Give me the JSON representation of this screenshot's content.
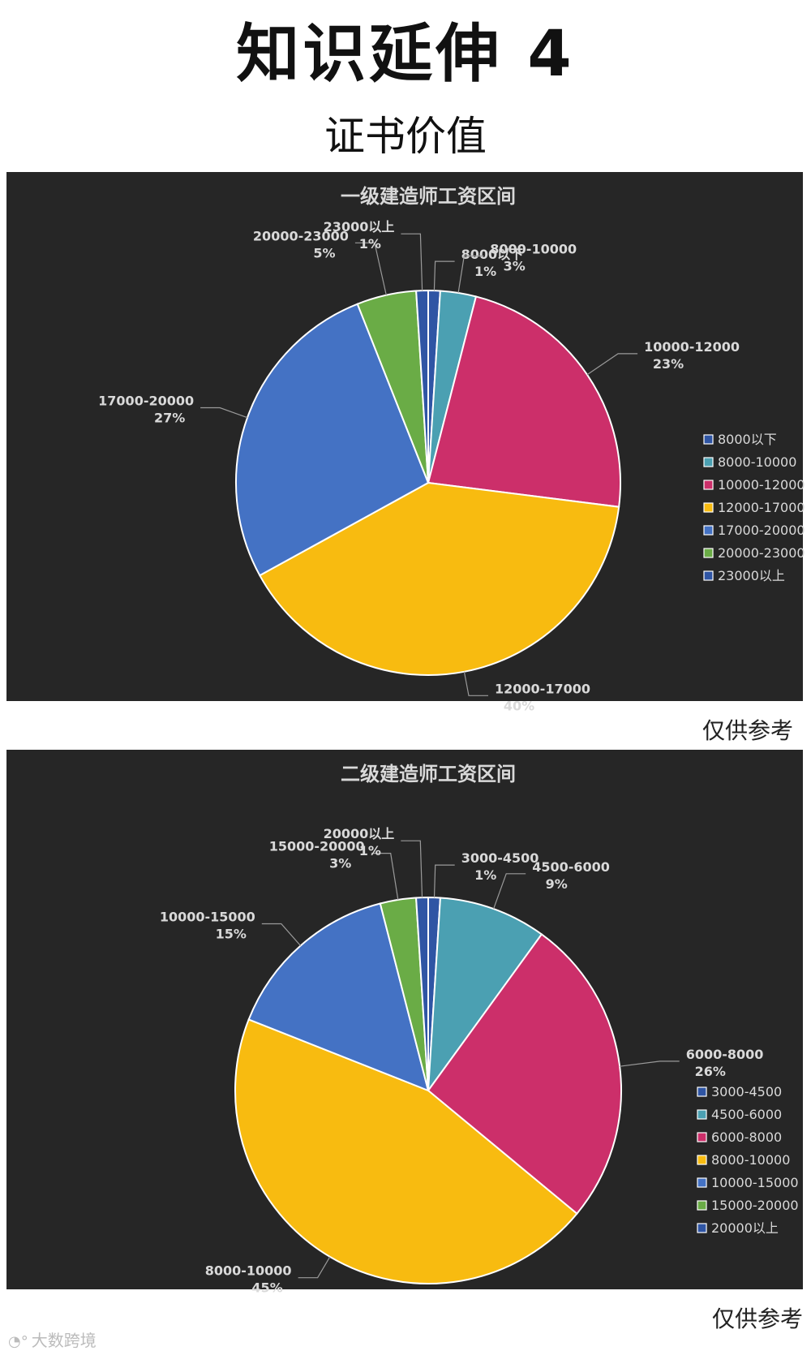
{
  "header": {
    "title": "知识延伸 4",
    "subtitle": "证书价值"
  },
  "notes": {
    "first": "仅供参考",
    "second": "仅供参考"
  },
  "watermark": "大数跨境",
  "chart_data": [
    {
      "type": "pie",
      "title": "一级建造师工资区间",
      "categories": [
        "8000以下",
        "8000-10000",
        "10000-12000",
        "12000-17000",
        "17000-20000",
        "20000-23000",
        "23000以上"
      ],
      "values": [
        1,
        3,
        23,
        40,
        27,
        5,
        1
      ],
      "value_labels": [
        "1%",
        "3%",
        "23%",
        "40%",
        "27%",
        "5%",
        "1%"
      ],
      "colors": [
        "#2f55a4",
        "#4ba0b2",
        "#cc2f6a",
        "#f8bb10",
        "#4472c4",
        "#6aac46",
        "#2f55a4"
      ],
      "legend_position": "right"
    },
    {
      "type": "pie",
      "title": "二级建造师工资区间",
      "categories": [
        "3000-4500",
        "4500-6000",
        "6000-8000",
        "8000-10000",
        "10000-15000",
        "15000-20000",
        "20000以上"
      ],
      "values": [
        1,
        9,
        26,
        45,
        15,
        3,
        1
      ],
      "value_labels": [
        "1%",
        "9%",
        "26%",
        "45%",
        "15%",
        "3%",
        "1%"
      ],
      "colors": [
        "#2f55a4",
        "#4ba0b2",
        "#cc2f6a",
        "#f8bb10",
        "#4472c4",
        "#6aac46",
        "#2f55a4"
      ],
      "legend_position": "right"
    }
  ]
}
